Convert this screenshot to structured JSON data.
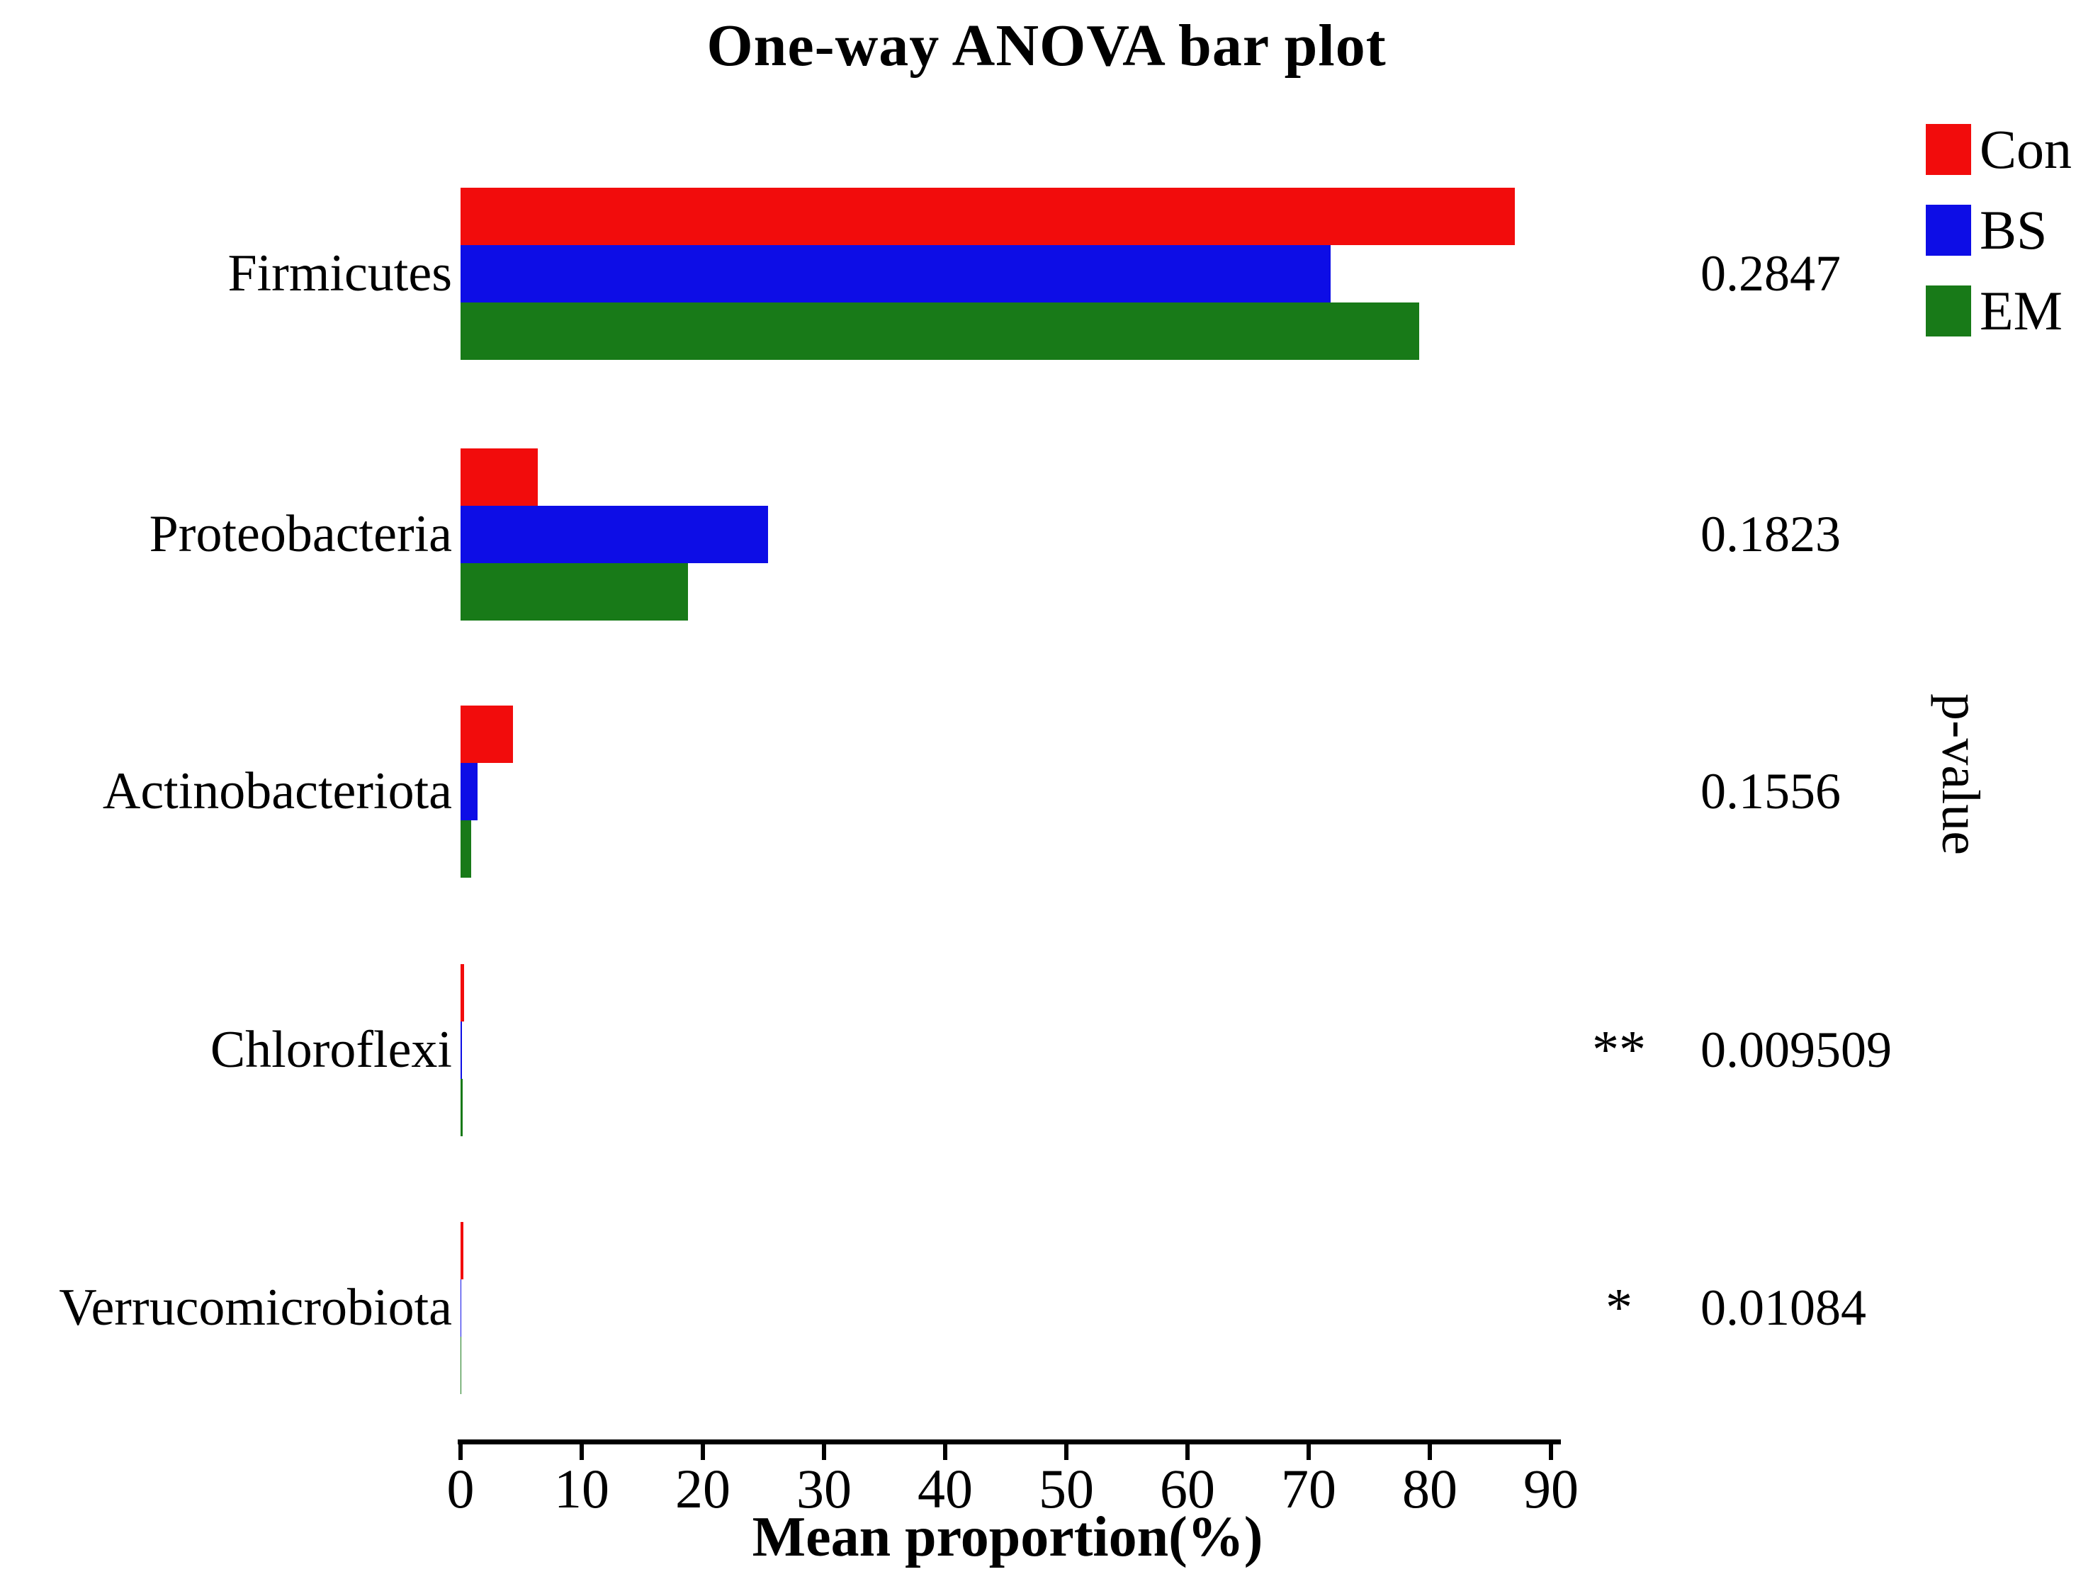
{
  "chart_data": {
    "type": "bar",
    "orientation": "horizontal",
    "title": "One-way ANOVA bar plot",
    "xlabel": "Mean proportion(%)",
    "right_axis_label": "p-value",
    "categories": [
      "Firmicutes",
      "Proteobacteria",
      "Actinobacteriota",
      "Chloroflexi",
      "Verrucomicrobiota"
    ],
    "series": [
      {
        "name": "Con",
        "color": "#f20c0c",
        "values": [
          87.0,
          6.4,
          4.3,
          0.3,
          0.25
        ]
      },
      {
        "name": "BS",
        "color": "#0d0de6",
        "values": [
          71.8,
          25.4,
          1.4,
          0.1,
          0.06
        ]
      },
      {
        "name": "EM",
        "color": "#187a18",
        "values": [
          79.1,
          18.8,
          0.9,
          0.15,
          0.03
        ]
      }
    ],
    "p_values": [
      "0.2847",
      "0.1823",
      "0.1556",
      "0.009509",
      "0.01084"
    ],
    "significance": [
      "",
      "",
      "",
      "**",
      "*"
    ],
    "xlim": [
      0,
      90
    ],
    "x_ticks": [
      0,
      10,
      20,
      30,
      40,
      50,
      60,
      70,
      80,
      90
    ],
    "grid": false,
    "legend_position": "top-right"
  }
}
